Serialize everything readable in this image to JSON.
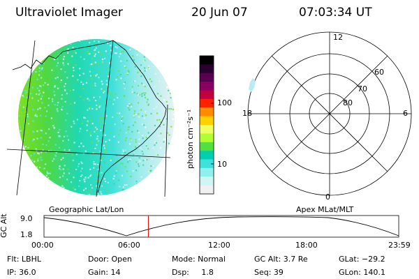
{
  "header": {
    "title": "Ultraviolet Imager",
    "date": "20 Jun 07",
    "time": "07:03:34 UT"
  },
  "left_panel": {
    "caption": "Geographic Lat/Lon"
  },
  "right_panel": {
    "caption": "Apex MLat/MLT",
    "mlt_labels": [
      "12",
      "18",
      "6",
      "0"
    ],
    "mlat_labels": [
      "60",
      "70",
      "80"
    ]
  },
  "colorbar": {
    "unit_label": "photon cm⁻²s⁻¹",
    "ticks": [
      "100",
      "10"
    ],
    "colors": [
      "#000000",
      "#2a0030",
      "#5a0050",
      "#8a0060",
      "#c00040",
      "#ff2000",
      "#ff8c00",
      "#ffd000",
      "#f0ff60",
      "#b0ff30",
      "#50e040",
      "#00d0b0",
      "#40e0e0",
      "#90f0f0",
      "#d0f5f5",
      "#f0f0f0"
    ]
  },
  "timeline": {
    "axis_label": "GC Alt",
    "y_ticks": [
      "9.0",
      "1.8"
    ],
    "x_ticks": [
      "00:00",
      "06:00",
      "12:00",
      "18:00",
      "23:59"
    ],
    "current_time_hours": 7.06
  },
  "info": {
    "row1": [
      "Flt: LBHL",
      "Door: Open",
      "Mode: Normal",
      "GC Alt: 3.7 Re",
      "GLat: −29.2"
    ],
    "row2": [
      "IP: 36.0",
      "Gain: 14",
      "Dsp:     1.8",
      "Seq: 39",
      "GLon: 140.1"
    ]
  }
}
